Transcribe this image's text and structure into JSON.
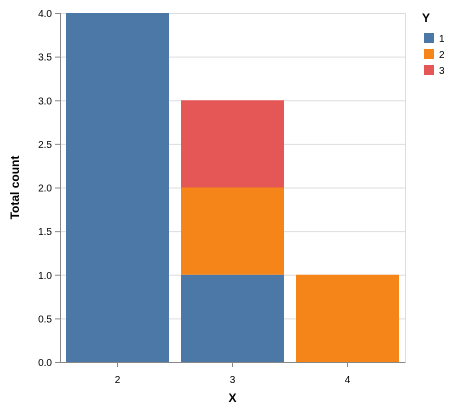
{
  "chart_data": {
    "type": "bar",
    "stacked": true,
    "categories": [
      "2",
      "3",
      "4"
    ],
    "series": [
      {
        "name": "1",
        "values": [
          4,
          1,
          0
        ]
      },
      {
        "name": "2",
        "values": [
          0,
          1,
          1
        ]
      },
      {
        "name": "3",
        "values": [
          0,
          1,
          0
        ]
      }
    ],
    "xlabel": "X",
    "ylabel": "Total count",
    "ylim": [
      0,
      4
    ],
    "yticks": [
      "0.0",
      "0.5",
      "1.0",
      "1.5",
      "2.0",
      "2.5",
      "3.0",
      "3.5",
      "4.0"
    ],
    "grid": true,
    "legend": {
      "title": "Y",
      "position": "top-right"
    },
    "colors": {
      "1": "#4c78a8",
      "2": "#f58518",
      "3": "#e45756"
    }
  }
}
